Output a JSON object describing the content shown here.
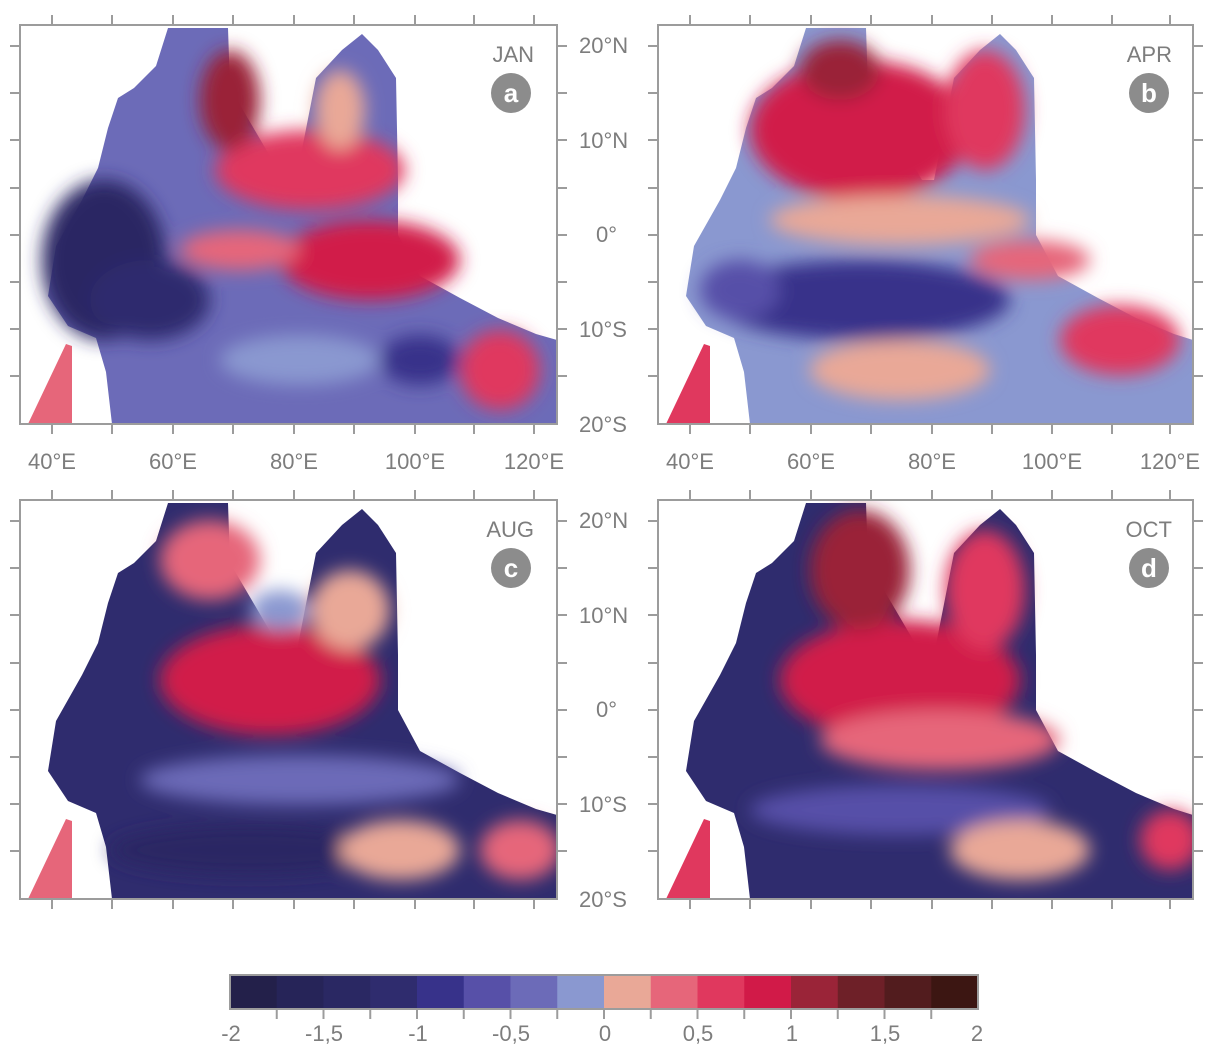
{
  "figure": {
    "panels": [
      {
        "month": "JAN",
        "letter": "a",
        "show_lon_labels": true
      },
      {
        "month": "APR",
        "letter": "b",
        "show_lon_labels": true
      },
      {
        "month": "AUG",
        "letter": "c",
        "show_lon_labels": false
      },
      {
        "month": "OCT",
        "letter": "d",
        "show_lon_labels": false
      }
    ],
    "lat_labels": [
      "20°N",
      "10°N",
      "0°",
      "10°S",
      "20°S"
    ],
    "lon_labels": [
      "40°E",
      "60°E",
      "80°E",
      "100°E",
      "120°E"
    ],
    "colorbar": {
      "colors": [
        "#23204a",
        "#262458",
        "#2a2863",
        "#2f2c6e",
        "#37328a",
        "#5750a8",
        "#6c6bb8",
        "#8a98d0",
        "#e9a897",
        "#e6667a",
        "#e0385e",
        "#d11a48",
        "#9a2438",
        "#6e2028",
        "#521c1e",
        "#3c1612"
      ],
      "tick_labels": [
        "-2",
        "-1,5",
        "-1",
        "-0,5",
        "0",
        "0,5",
        "1",
        "1,5",
        "2"
      ]
    }
  }
}
